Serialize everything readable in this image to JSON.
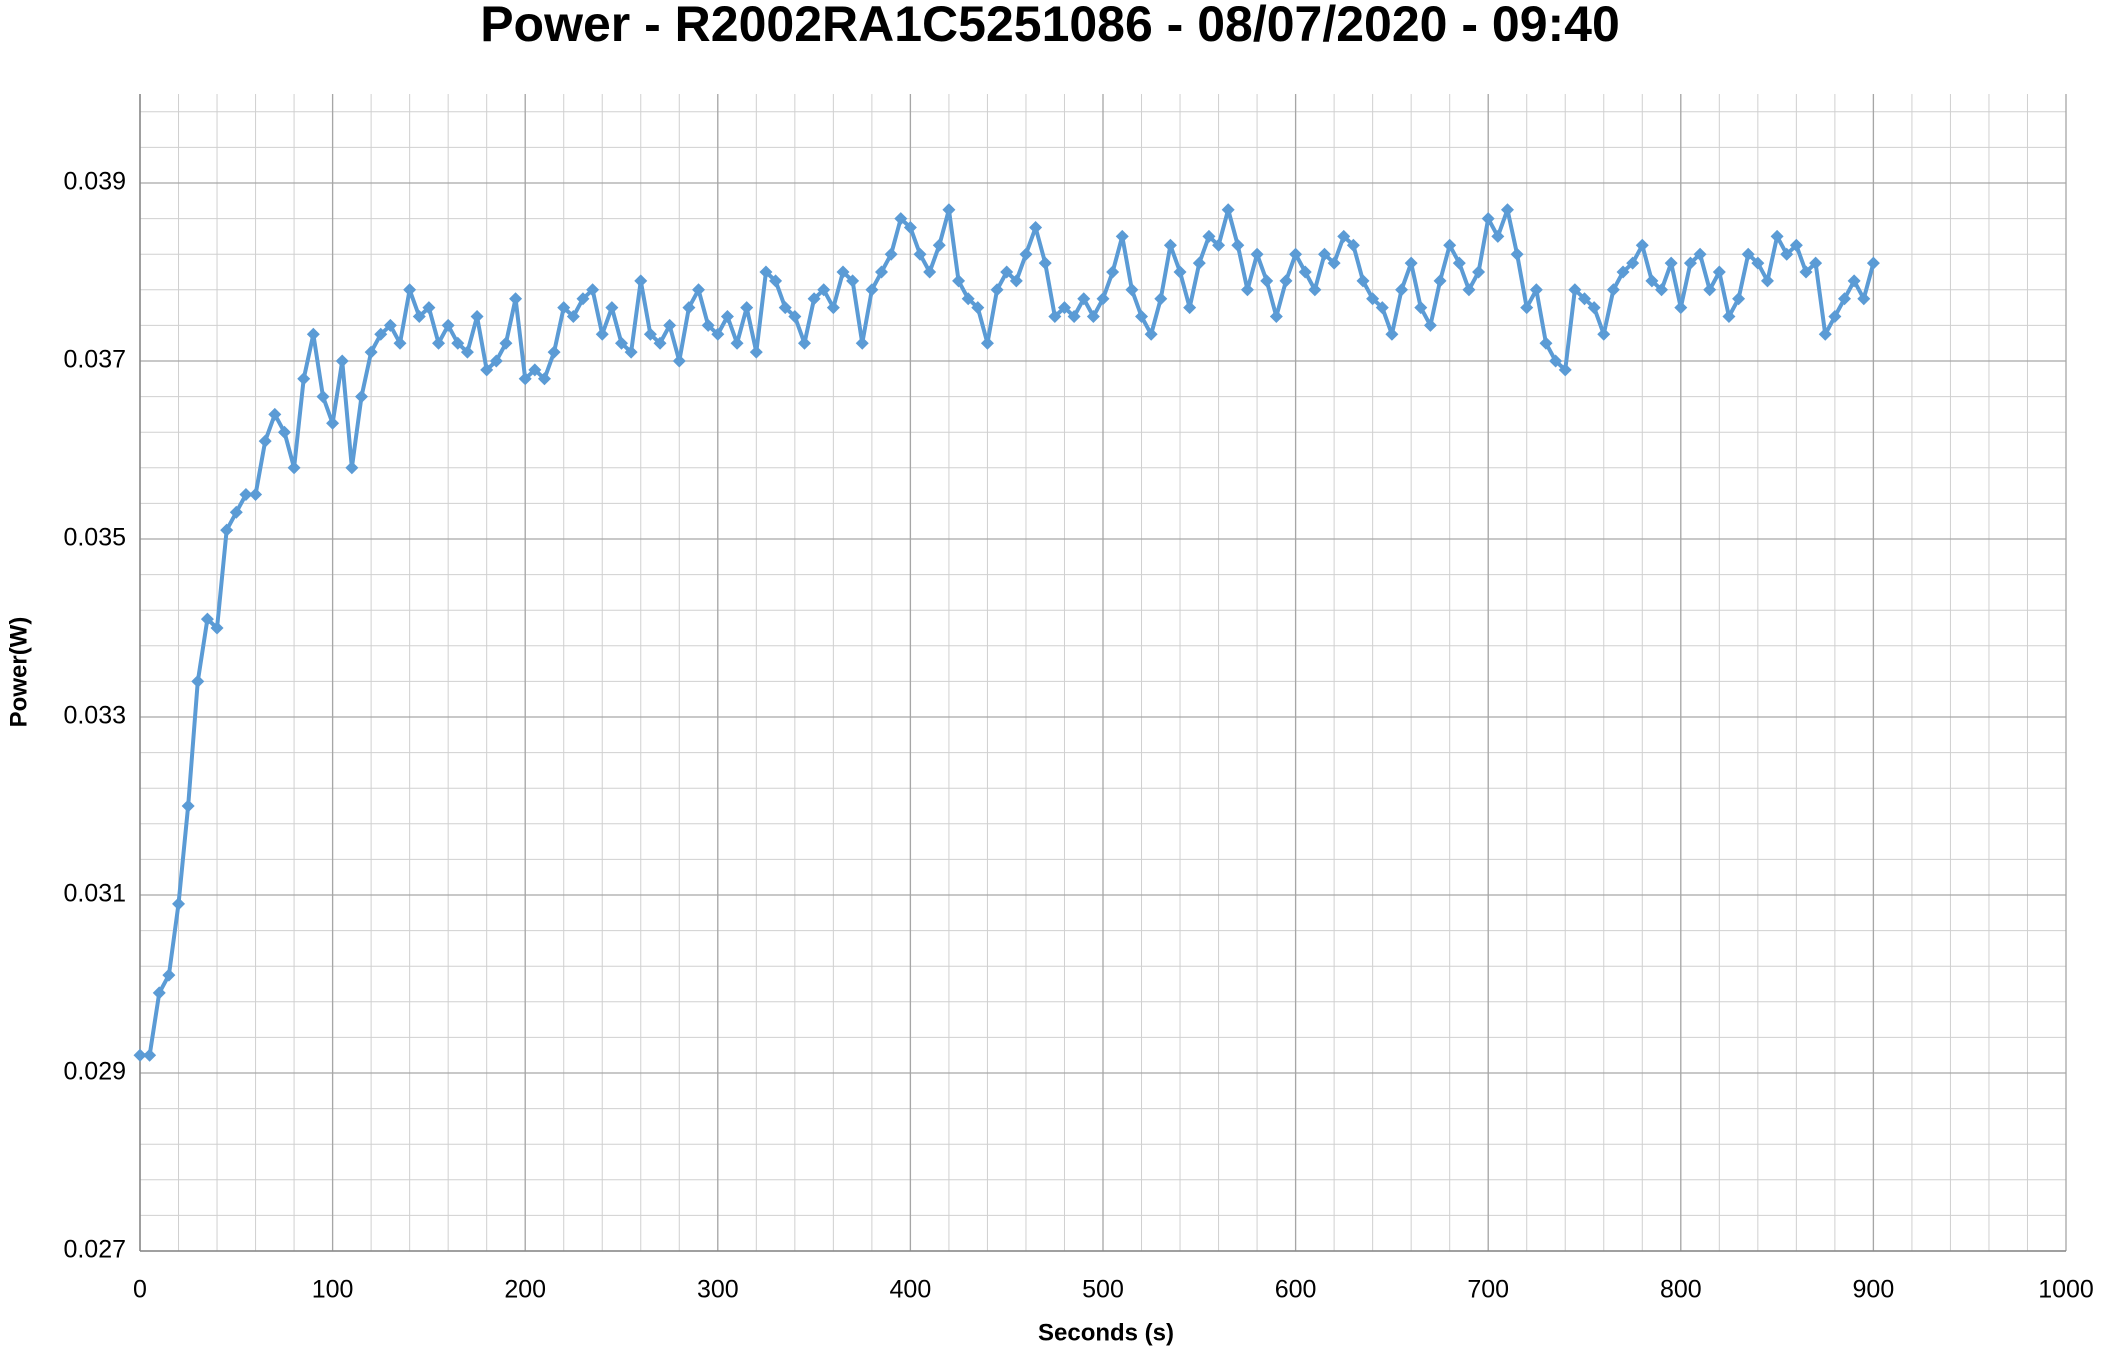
{
  "chart_data": {
    "type": "line",
    "title": "Power - R2002RA1C5251086 - 08/07/2020 - 09:40",
    "x_label": "Seconds (s)",
    "y_label": "Power(W)",
    "xlim": [
      0,
      1000
    ],
    "xticks": [
      0,
      100,
      200,
      300,
      400,
      500,
      600,
      700,
      800,
      900,
      1000
    ],
    "ylim": [
      0.027,
      0.04
    ],
    "yticks": [
      0.027,
      0.029,
      0.031,
      0.033,
      0.035,
      0.037,
      0.039
    ],
    "grid": true,
    "minor_grid_divisions": 5,
    "marker": "diamond",
    "x": [
      0,
      5,
      10,
      15,
      20,
      25,
      30,
      35,
      40,
      45,
      50,
      55,
      60,
      65,
      70,
      75,
      80,
      85,
      90,
      95,
      100,
      105,
      110,
      115,
      120,
      125,
      130,
      135,
      140,
      145,
      150,
      155,
      160,
      165,
      170,
      175,
      180,
      185,
      190,
      195,
      200,
      205,
      210,
      215,
      220,
      225,
      230,
      235,
      240,
      245,
      250,
      255,
      260,
      265,
      270,
      275,
      280,
      285,
      290,
      295,
      300,
      305,
      310,
      315,
      320,
      325,
      330,
      335,
      340,
      345,
      350,
      355,
      360,
      365,
      370,
      375,
      380,
      385,
      390,
      395,
      400,
      405,
      410,
      415,
      420,
      425,
      430,
      435,
      440,
      445,
      450,
      455,
      460,
      465,
      470,
      475,
      480,
      485,
      490,
      495,
      500,
      505,
      510,
      515,
      520,
      525,
      530,
      535,
      540,
      545,
      550,
      555,
      560,
      565,
      570,
      575,
      580,
      585,
      590,
      595,
      600,
      605,
      610,
      615,
      620,
      625,
      630,
      635,
      640,
      645,
      650,
      655,
      660,
      665,
      670,
      675,
      680,
      685,
      690,
      695,
      700,
      705,
      710,
      715,
      720,
      725,
      730,
      735,
      740,
      745,
      750,
      755,
      760,
      765,
      770,
      775,
      780,
      785,
      790,
      795,
      800,
      805,
      810,
      815,
      820,
      825,
      830,
      835,
      840,
      845,
      850,
      855,
      860,
      865,
      870,
      875,
      880,
      885,
      890,
      895,
      900
    ],
    "series": [
      {
        "name": "Power",
        "color": "#5b9bd5",
        "values": [
          0.0292,
          0.0292,
          0.0299,
          0.0301,
          0.0309,
          0.032,
          0.0334,
          0.0341,
          0.034,
          0.0351,
          0.0353,
          0.0355,
          0.0355,
          0.0361,
          0.0364,
          0.0362,
          0.0358,
          0.0368,
          0.0373,
          0.0366,
          0.0363,
          0.037,
          0.0358,
          0.0366,
          0.0371,
          0.0373,
          0.0374,
          0.0372,
          0.0378,
          0.0375,
          0.0376,
          0.0372,
          0.0374,
          0.0372,
          0.0371,
          0.0375,
          0.0369,
          0.037,
          0.0372,
          0.0377,
          0.0368,
          0.0369,
          0.0368,
          0.0371,
          0.0376,
          0.0375,
          0.0377,
          0.0378,
          0.0373,
          0.0376,
          0.0372,
          0.0371,
          0.0379,
          0.0373,
          0.0372,
          0.0374,
          0.037,
          0.0376,
          0.0378,
          0.0374,
          0.0373,
          0.0375,
          0.0372,
          0.0376,
          0.0371,
          0.038,
          0.0379,
          0.0376,
          0.0375,
          0.0372,
          0.0377,
          0.0378,
          0.0376,
          0.038,
          0.0379,
          0.0372,
          0.0378,
          0.038,
          0.0382,
          0.0386,
          0.0385,
          0.0382,
          0.038,
          0.0383,
          0.0387,
          0.0379,
          0.0377,
          0.0376,
          0.0372,
          0.0378,
          0.038,
          0.0379,
          0.0382,
          0.0385,
          0.0381,
          0.0375,
          0.0376,
          0.0375,
          0.0377,
          0.0375,
          0.0377,
          0.038,
          0.0384,
          0.0378,
          0.0375,
          0.0373,
          0.0377,
          0.0383,
          0.038,
          0.0376,
          0.0381,
          0.0384,
          0.0383,
          0.0387,
          0.0383,
          0.0378,
          0.0382,
          0.0379,
          0.0375,
          0.0379,
          0.0382,
          0.038,
          0.0378,
          0.0382,
          0.0381,
          0.0384,
          0.0383,
          0.0379,
          0.0377,
          0.0376,
          0.0373,
          0.0378,
          0.0381,
          0.0376,
          0.0374,
          0.0379,
          0.0383,
          0.0381,
          0.0378,
          0.038,
          0.0386,
          0.0384,
          0.0387,
          0.0382,
          0.0376,
          0.0378,
          0.0372,
          0.037,
          0.0369,
          0.0378,
          0.0377,
          0.0376,
          0.0373,
          0.0378,
          0.038,
          0.0381,
          0.0383,
          0.0379,
          0.0378,
          0.0381,
          0.0376,
          0.0381,
          0.0382,
          0.0378,
          0.038,
          0.0375,
          0.0377,
          0.0382,
          0.0381,
          0.0379,
          0.0384,
          0.0382,
          0.0383,
          0.038,
          0.0381,
          0.0373,
          0.0375,
          0.0377,
          0.0379,
          0.0377,
          0.0381
        ]
      }
    ]
  }
}
